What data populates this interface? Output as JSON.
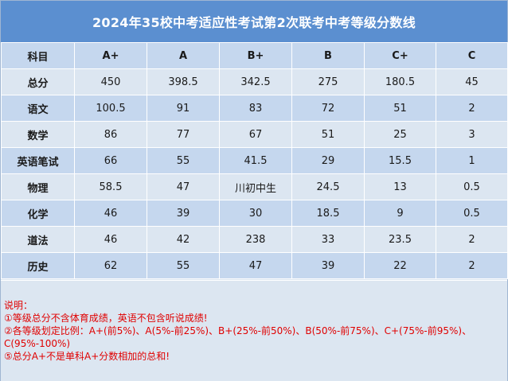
{
  "title": "2024年35校中考适应性考试第2次联考中考等级分数线",
  "header": [
    "科目",
    "A+",
    "A",
    "B+",
    "B",
    "C+",
    "C"
  ],
  "rows": [
    [
      "总分",
      "450",
      "398.5",
      "342.5",
      "275",
      "180.5",
      "45"
    ],
    [
      "语文",
      "100.5",
      "91",
      "83",
      "72",
      "51",
      "2"
    ],
    [
      "数学",
      "86",
      "77",
      "67",
      "51",
      "25",
      "3"
    ],
    [
      "英语笔试",
      "66",
      "55",
      "41.5",
      "29",
      "15.5",
      "1"
    ],
    [
      "物理",
      "58.5",
      "47",
      "川初中生",
      "24.5",
      "13",
      "0.5"
    ],
    [
      "化学",
      "46",
      "39",
      "30",
      "18.5",
      "9",
      "0.5"
    ],
    [
      "道法",
      "46",
      "42",
      "238",
      "33",
      "23.5",
      "2"
    ],
    [
      "历史",
      "62",
      "55",
      "47",
      "39",
      "22",
      "2"
    ]
  ],
  "notes": [
    "说明：",
    "①等级总分不含体育成绩，英语不包含听说成绩!",
    "②各等级划定比例：A+(前5%)、A(5%-前25%)、B+(25%-前50%)、B(50%-前75%)、C+(75%-前95%)、",
    "C(95%-100%)",
    "⑤总分A+不是单科A+分数相加的总和!"
  ]
}
